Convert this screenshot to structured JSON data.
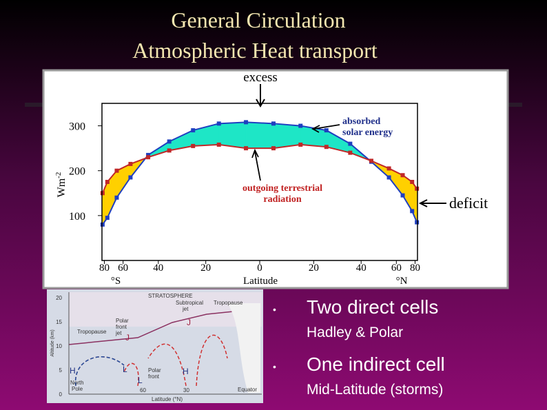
{
  "title": [
    "General Circulation",
    "Atmospheric Heat transport"
  ],
  "chart_data": {
    "type": "line",
    "x": [
      -85,
      -75,
      -65,
      -55,
      -45,
      -35,
      -25,
      -15,
      -5,
      5,
      15,
      25,
      35,
      45,
      55,
      65,
      75,
      85
    ],
    "xscale": "sine",
    "xlim": [
      -90,
      90
    ],
    "xticks": [
      {
        "value": -80,
        "label": "80"
      },
      {
        "value": -60,
        "label": "60"
      },
      {
        "value": -40,
        "label": "40"
      },
      {
        "value": -20,
        "label": "20"
      },
      0,
      20,
      40,
      60,
      80
    ],
    "xlabel": "Latitude",
    "xlabel_left": "°S",
    "xlabel_right": "°N",
    "ylabel": "Wm",
    "ylabel_sup": "-2",
    "ylim": [
      0,
      350
    ],
    "yticks": [
      100,
      200,
      300
    ],
    "grid": false,
    "series": [
      {
        "color": "#1f3fc0",
        "values": [
          80,
          95,
          140,
          185,
          235,
          265,
          290,
          305,
          308,
          305,
          300,
          290,
          260,
          220,
          185,
          145,
          110,
          85
        ]
      },
      {
        "color": "#c02828",
        "values": [
          150,
          175,
          200,
          215,
          230,
          245,
          255,
          258,
          250,
          250,
          258,
          253,
          240,
          222,
          205,
          190,
          175,
          160
        ]
      }
    ],
    "surplus_color": "#1ee6c6",
    "deficit_color": "#ffd000",
    "annotations": {
      "excess": "excess",
      "absorbed": [
        "absorbed",
        "solar energy"
      ],
      "outgoing": [
        "outgoing terrestrial",
        "radiation"
      ],
      "deficit": "deficit"
    }
  },
  "diagram": {
    "stratosphere": "STRATOSPHERE",
    "subtropical_jet": [
      "Subtropical",
      "jet"
    ],
    "tropopause_right": "Tropopause",
    "tropopause_left": "Tropopause",
    "polar_front_jet": [
      "Polar",
      "front",
      "jet"
    ],
    "j1": "J",
    "j2": "J",
    "h1": "H",
    "l1": "L",
    "l2": "L",
    "h2": "H",
    "north_pole": [
      "North",
      "Pole"
    ],
    "polar_front": [
      "Polar",
      "front"
    ],
    "equator": "Equator",
    "lat60": "60",
    "lat30": "30",
    "xlabel": "Latitude (°N)",
    "ylabel": "Altitude (km)",
    "yticks": [
      0,
      5,
      10,
      15,
      20
    ]
  },
  "bullets": [
    {
      "main": "Two direct cells",
      "sub": "Hadley & Polar"
    },
    {
      "main": "One indirect cell",
      "sub": "Mid-Latitude (storms)"
    }
  ]
}
